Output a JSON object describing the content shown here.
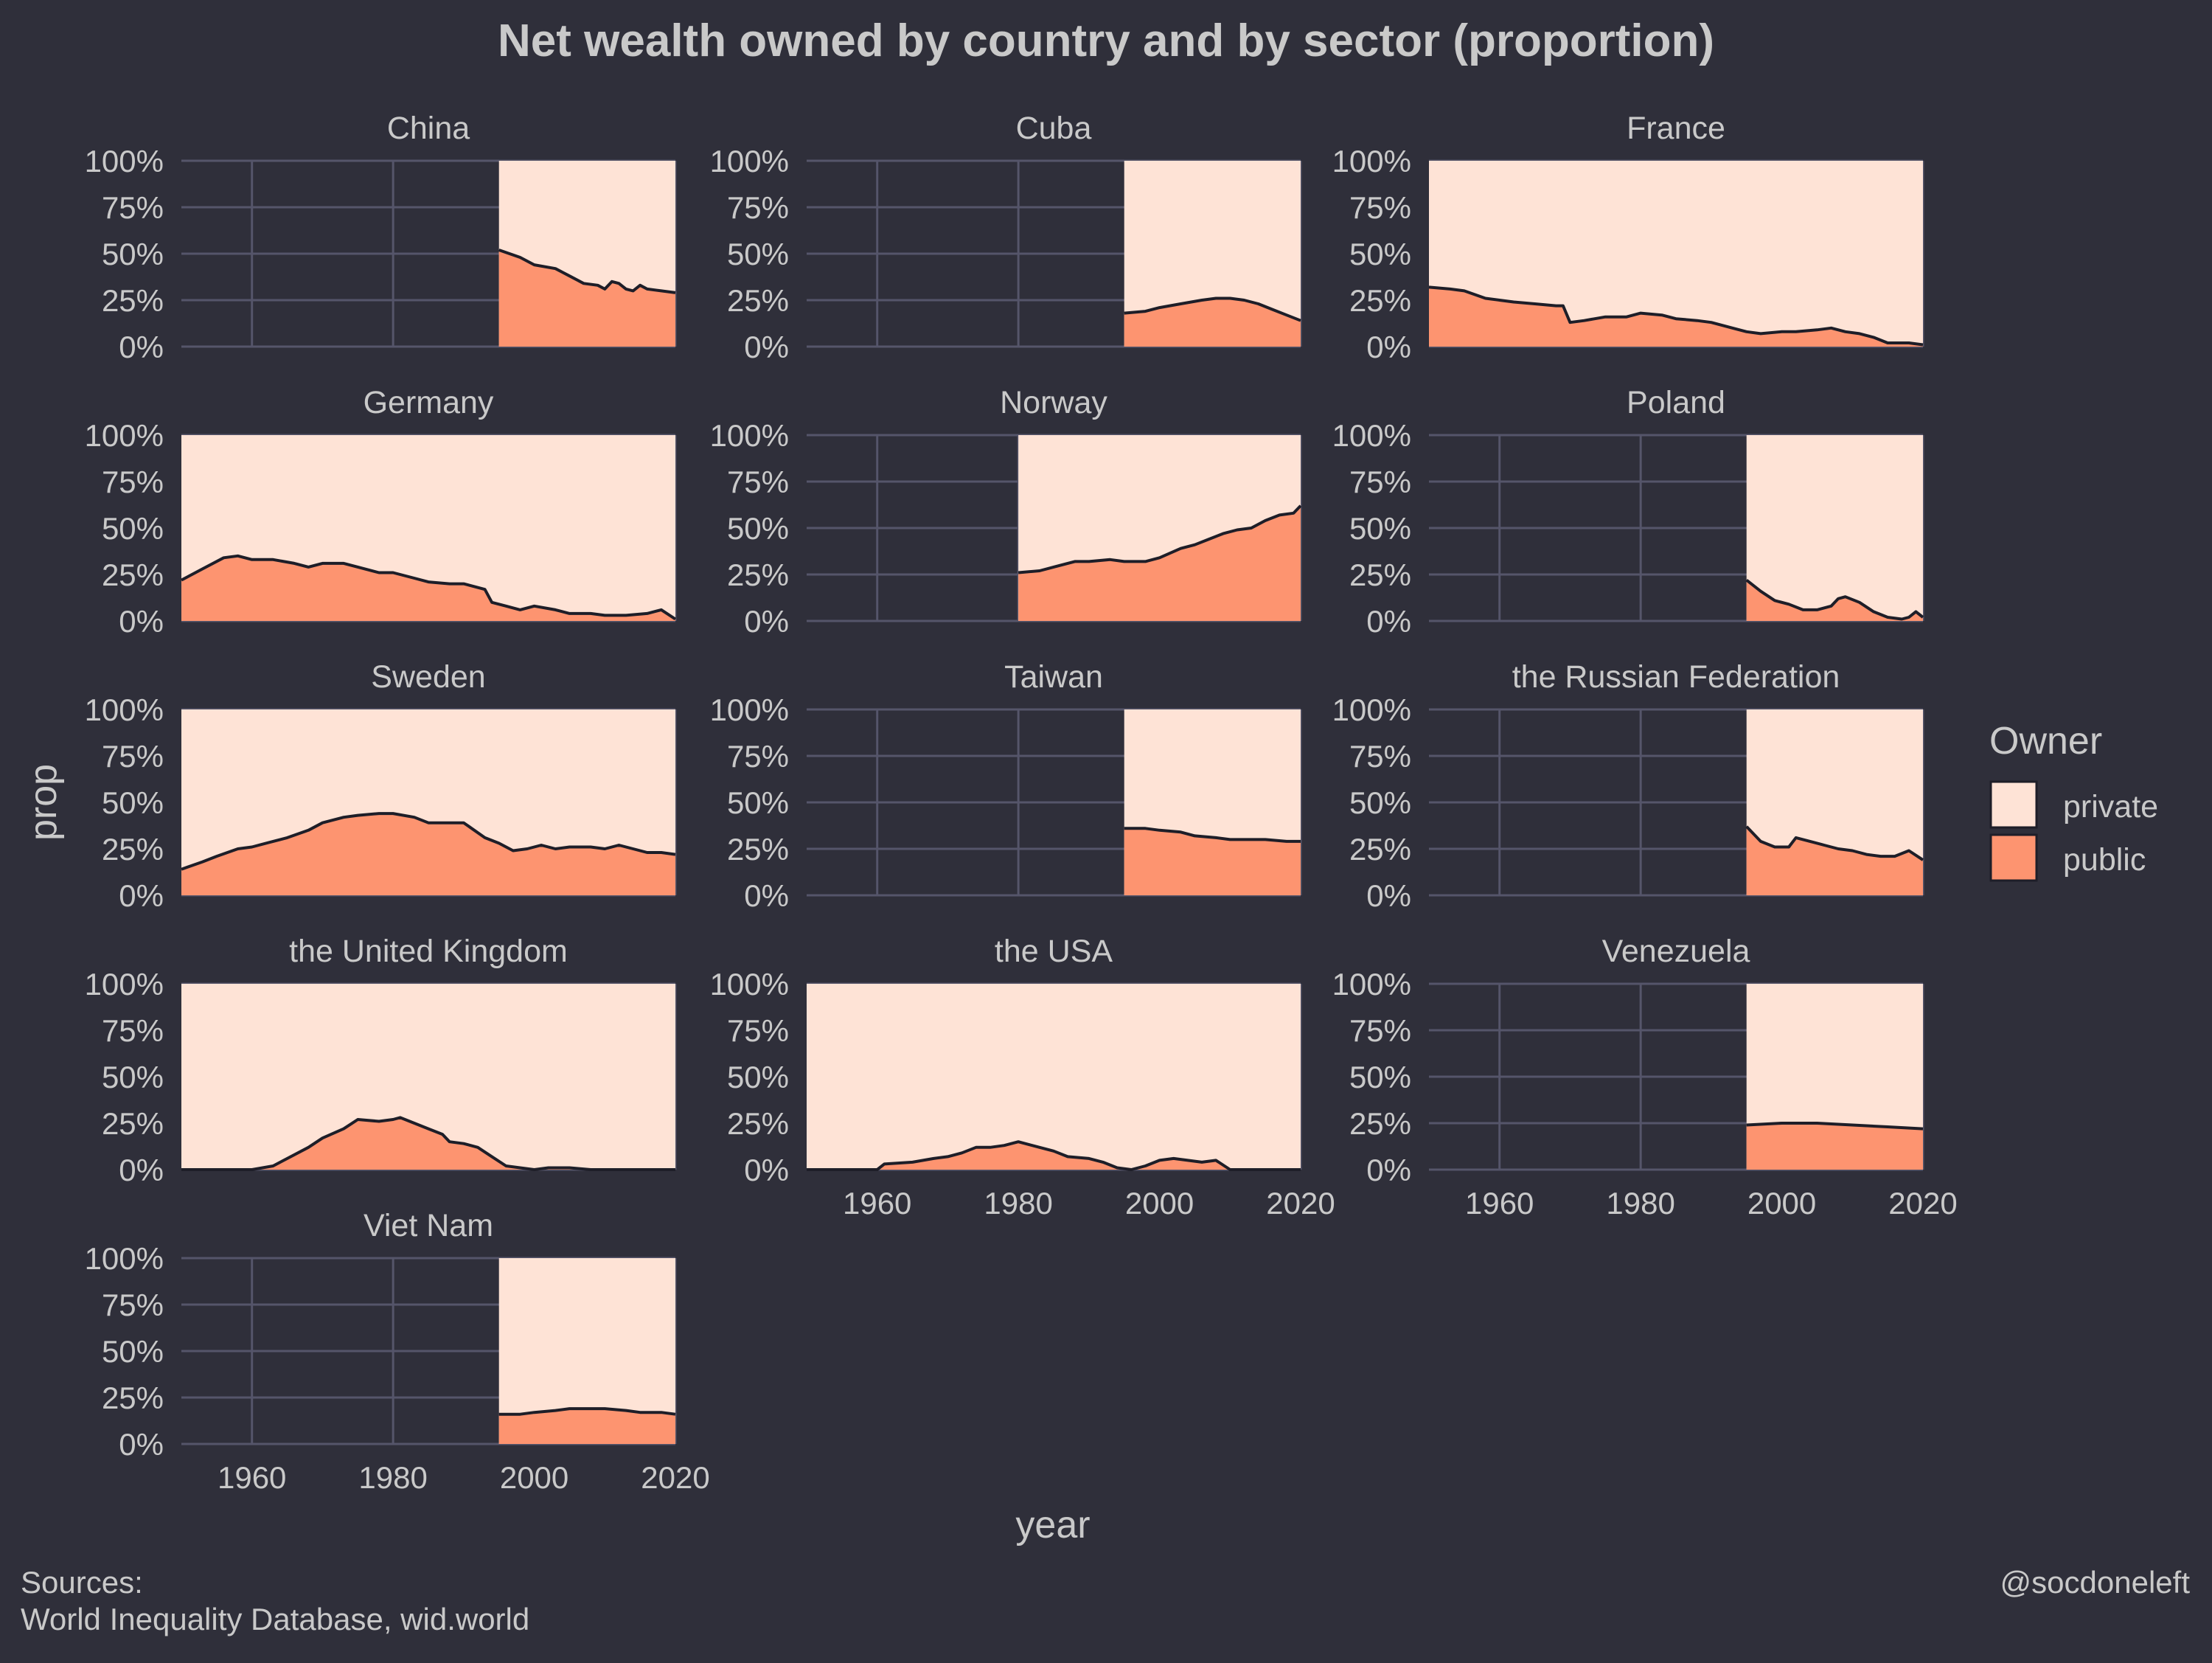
{
  "title": "Net wealth owned by country and by sector (proportion)",
  "caption_left": [
    "Sources:",
    "World Inequality Database, wid.world"
  ],
  "caption_right": "@socdoneleft",
  "colors": {
    "background": "#2f2f3a",
    "private": "#fee3d6",
    "public": "#fd9470",
    "line": "#1e1e28",
    "grid": "#55556a",
    "text": "#c9c9c9"
  },
  "chart_data": {
    "type": "area",
    "subtype": "stacked proportion, faceted",
    "xlabel": "year",
    "ylabel": "prop",
    "xlim": [
      1950,
      2020
    ],
    "ylim": [
      0,
      1
    ],
    "x_ticks": [
      1960,
      1980,
      2000,
      2020
    ],
    "y_ticks": [
      0,
      0.25,
      0.5,
      0.75,
      1
    ],
    "y_tick_labels": [
      "0%",
      "25%",
      "50%",
      "75%",
      "100%"
    ],
    "legend": {
      "title": "Owner",
      "placement": "right",
      "entries": [
        {
          "name": "private",
          "color": "#fee3d6"
        },
        {
          "name": "public",
          "color": "#fd9470"
        }
      ]
    },
    "facets": [
      {
        "name": "China",
        "public": [
          [
            1995,
            0.52
          ],
          [
            1998,
            0.48
          ],
          [
            2000,
            0.44
          ],
          [
            2003,
            0.42
          ],
          [
            2005,
            0.38
          ],
          [
            2007,
            0.34
          ],
          [
            2009,
            0.33
          ],
          [
            2010,
            0.31
          ],
          [
            2011,
            0.35
          ],
          [
            2012,
            0.34
          ],
          [
            2013,
            0.31
          ],
          [
            2014,
            0.3
          ],
          [
            2015,
            0.33
          ],
          [
            2016,
            0.31
          ],
          [
            2018,
            0.3
          ],
          [
            2020,
            0.29
          ]
        ]
      },
      {
        "name": "Cuba",
        "public": [
          [
            1995,
            0.18
          ],
          [
            1998,
            0.19
          ],
          [
            2000,
            0.21
          ],
          [
            2003,
            0.23
          ],
          [
            2006,
            0.25
          ],
          [
            2008,
            0.26
          ],
          [
            2010,
            0.26
          ],
          [
            2012,
            0.25
          ],
          [
            2014,
            0.23
          ],
          [
            2016,
            0.2
          ],
          [
            2018,
            0.17
          ],
          [
            2020,
            0.14
          ]
        ]
      },
      {
        "name": "France",
        "public": [
          [
            1950,
            0.32
          ],
          [
            1953,
            0.31
          ],
          [
            1955,
            0.3
          ],
          [
            1958,
            0.26
          ],
          [
            1960,
            0.25
          ],
          [
            1962,
            0.24
          ],
          [
            1965,
            0.23
          ],
          [
            1968,
            0.22
          ],
          [
            1969,
            0.22
          ],
          [
            1970,
            0.13
          ],
          [
            1972,
            0.14
          ],
          [
            1975,
            0.16
          ],
          [
            1978,
            0.16
          ],
          [
            1980,
            0.18
          ],
          [
            1983,
            0.17
          ],
          [
            1985,
            0.15
          ],
          [
            1988,
            0.14
          ],
          [
            1990,
            0.13
          ],
          [
            1993,
            0.1
          ],
          [
            1995,
            0.08
          ],
          [
            1997,
            0.07
          ],
          [
            2000,
            0.08
          ],
          [
            2002,
            0.08
          ],
          [
            2005,
            0.09
          ],
          [
            2007,
            0.1
          ],
          [
            2009,
            0.08
          ],
          [
            2011,
            0.07
          ],
          [
            2013,
            0.05
          ],
          [
            2015,
            0.02
          ],
          [
            2018,
            0.02
          ],
          [
            2020,
            0.01
          ]
        ]
      },
      {
        "name": "Germany",
        "public": [
          [
            1950,
            0.22
          ],
          [
            1953,
            0.28
          ],
          [
            1956,
            0.34
          ],
          [
            1958,
            0.35
          ],
          [
            1960,
            0.33
          ],
          [
            1963,
            0.33
          ],
          [
            1966,
            0.31
          ],
          [
            1968,
            0.29
          ],
          [
            1970,
            0.31
          ],
          [
            1973,
            0.31
          ],
          [
            1975,
            0.29
          ],
          [
            1978,
            0.26
          ],
          [
            1980,
            0.26
          ],
          [
            1983,
            0.23
          ],
          [
            1985,
            0.21
          ],
          [
            1988,
            0.2
          ],
          [
            1990,
            0.2
          ],
          [
            1993,
            0.17
          ],
          [
            1994,
            0.1
          ],
          [
            1996,
            0.08
          ],
          [
            1998,
            0.06
          ],
          [
            2000,
            0.08
          ],
          [
            2003,
            0.06
          ],
          [
            2005,
            0.04
          ],
          [
            2008,
            0.04
          ],
          [
            2010,
            0.03
          ],
          [
            2013,
            0.03
          ],
          [
            2016,
            0.04
          ],
          [
            2018,
            0.06
          ],
          [
            2020,
            0.01
          ]
        ]
      },
      {
        "name": "Norway",
        "public": [
          [
            1980,
            0.26
          ],
          [
            1983,
            0.27
          ],
          [
            1985,
            0.29
          ],
          [
            1988,
            0.32
          ],
          [
            1990,
            0.32
          ],
          [
            1993,
            0.33
          ],
          [
            1995,
            0.32
          ],
          [
            1998,
            0.32
          ],
          [
            2000,
            0.34
          ],
          [
            2003,
            0.39
          ],
          [
            2005,
            0.41
          ],
          [
            2007,
            0.44
          ],
          [
            2009,
            0.47
          ],
          [
            2011,
            0.49
          ],
          [
            2013,
            0.5
          ],
          [
            2015,
            0.54
          ],
          [
            2017,
            0.57
          ],
          [
            2019,
            0.58
          ],
          [
            2020,
            0.62
          ]
        ]
      },
      {
        "name": "Poland",
        "public": [
          [
            1995,
            0.22
          ],
          [
            1997,
            0.16
          ],
          [
            1999,
            0.11
          ],
          [
            2001,
            0.09
          ],
          [
            2003,
            0.06
          ],
          [
            2005,
            0.06
          ],
          [
            2007,
            0.08
          ],
          [
            2008,
            0.12
          ],
          [
            2009,
            0.13
          ],
          [
            2011,
            0.1
          ],
          [
            2013,
            0.05
          ],
          [
            2015,
            0.02
          ],
          [
            2017,
            0.01
          ],
          [
            2018,
            0.02
          ],
          [
            2019,
            0.05
          ],
          [
            2020,
            0.02
          ]
        ]
      },
      {
        "name": "Sweden",
        "public": [
          [
            1950,
            0.14
          ],
          [
            1953,
            0.18
          ],
          [
            1955,
            0.21
          ],
          [
            1958,
            0.25
          ],
          [
            1960,
            0.26
          ],
          [
            1963,
            0.29
          ],
          [
            1965,
            0.31
          ],
          [
            1968,
            0.35
          ],
          [
            1970,
            0.39
          ],
          [
            1973,
            0.42
          ],
          [
            1975,
            0.43
          ],
          [
            1978,
            0.44
          ],
          [
            1980,
            0.44
          ],
          [
            1983,
            0.42
          ],
          [
            1985,
            0.39
          ],
          [
            1988,
            0.39
          ],
          [
            1990,
            0.39
          ],
          [
            1993,
            0.31
          ],
          [
            1995,
            0.28
          ],
          [
            1997,
            0.24
          ],
          [
            1999,
            0.25
          ],
          [
            2001,
            0.27
          ],
          [
            2003,
            0.25
          ],
          [
            2005,
            0.26
          ],
          [
            2008,
            0.26
          ],
          [
            2010,
            0.25
          ],
          [
            2012,
            0.27
          ],
          [
            2014,
            0.25
          ],
          [
            2016,
            0.23
          ],
          [
            2018,
            0.23
          ],
          [
            2020,
            0.22
          ]
        ]
      },
      {
        "name": "Taiwan",
        "public": [
          [
            1995,
            0.36
          ],
          [
            1998,
            0.36
          ],
          [
            2000,
            0.35
          ],
          [
            2003,
            0.34
          ],
          [
            2005,
            0.32
          ],
          [
            2008,
            0.31
          ],
          [
            2010,
            0.3
          ],
          [
            2013,
            0.3
          ],
          [
            2015,
            0.3
          ],
          [
            2018,
            0.29
          ],
          [
            2020,
            0.29
          ]
        ]
      },
      {
        "name": "the Russian Federation",
        "public": [
          [
            1995,
            0.37
          ],
          [
            1997,
            0.29
          ],
          [
            1999,
            0.26
          ],
          [
            2001,
            0.26
          ],
          [
            2002,
            0.31
          ],
          [
            2004,
            0.29
          ],
          [
            2006,
            0.27
          ],
          [
            2008,
            0.25
          ],
          [
            2010,
            0.24
          ],
          [
            2012,
            0.22
          ],
          [
            2014,
            0.21
          ],
          [
            2016,
            0.21
          ],
          [
            2018,
            0.24
          ],
          [
            2020,
            0.19
          ]
        ]
      },
      {
        "name": "the United Kingdom",
        "public": [
          [
            1950,
            0.0
          ],
          [
            1960,
            0.0
          ],
          [
            1963,
            0.02
          ],
          [
            1965,
            0.06
          ],
          [
            1968,
            0.12
          ],
          [
            1970,
            0.17
          ],
          [
            1973,
            0.22
          ],
          [
            1975,
            0.27
          ],
          [
            1978,
            0.26
          ],
          [
            1980,
            0.27
          ],
          [
            1981,
            0.28
          ],
          [
            1983,
            0.25
          ],
          [
            1985,
            0.22
          ],
          [
            1987,
            0.19
          ],
          [
            1988,
            0.15
          ],
          [
            1990,
            0.14
          ],
          [
            1992,
            0.12
          ],
          [
            1994,
            0.07
          ],
          [
            1996,
            0.02
          ],
          [
            1998,
            0.01
          ],
          [
            2000,
            0.0
          ],
          [
            2002,
            0.01
          ],
          [
            2005,
            0.01
          ],
          [
            2008,
            0.0
          ],
          [
            2020,
            0.0
          ]
        ]
      },
      {
        "name": "the USA",
        "public": [
          [
            1950,
            0.0
          ],
          [
            1960,
            0.0
          ],
          [
            1961,
            0.03
          ],
          [
            1965,
            0.04
          ],
          [
            1968,
            0.06
          ],
          [
            1970,
            0.07
          ],
          [
            1972,
            0.09
          ],
          [
            1974,
            0.12
          ],
          [
            1976,
            0.12
          ],
          [
            1978,
            0.13
          ],
          [
            1980,
            0.15
          ],
          [
            1983,
            0.12
          ],
          [
            1985,
            0.1
          ],
          [
            1987,
            0.07
          ],
          [
            1990,
            0.06
          ],
          [
            1992,
            0.04
          ],
          [
            1994,
            0.01
          ],
          [
            1996,
            0.0
          ],
          [
            1998,
            0.02
          ],
          [
            2000,
            0.05
          ],
          [
            2002,
            0.06
          ],
          [
            2004,
            0.05
          ],
          [
            2006,
            0.04
          ],
          [
            2008,
            0.05
          ],
          [
            2010,
            0.0
          ],
          [
            2020,
            0.0
          ]
        ]
      },
      {
        "name": "Venezuela",
        "public": [
          [
            1995,
            0.24
          ],
          [
            2000,
            0.25
          ],
          [
            2005,
            0.25
          ],
          [
            2010,
            0.24
          ],
          [
            2015,
            0.23
          ],
          [
            2020,
            0.22
          ]
        ]
      },
      {
        "name": "Viet Nam",
        "public": [
          [
            1995,
            0.16
          ],
          [
            1998,
            0.16
          ],
          [
            2000,
            0.17
          ],
          [
            2003,
            0.18
          ],
          [
            2005,
            0.19
          ],
          [
            2008,
            0.19
          ],
          [
            2010,
            0.19
          ],
          [
            2013,
            0.18
          ],
          [
            2015,
            0.17
          ],
          [
            2018,
            0.17
          ],
          [
            2020,
            0.16
          ]
        ]
      }
    ]
  }
}
